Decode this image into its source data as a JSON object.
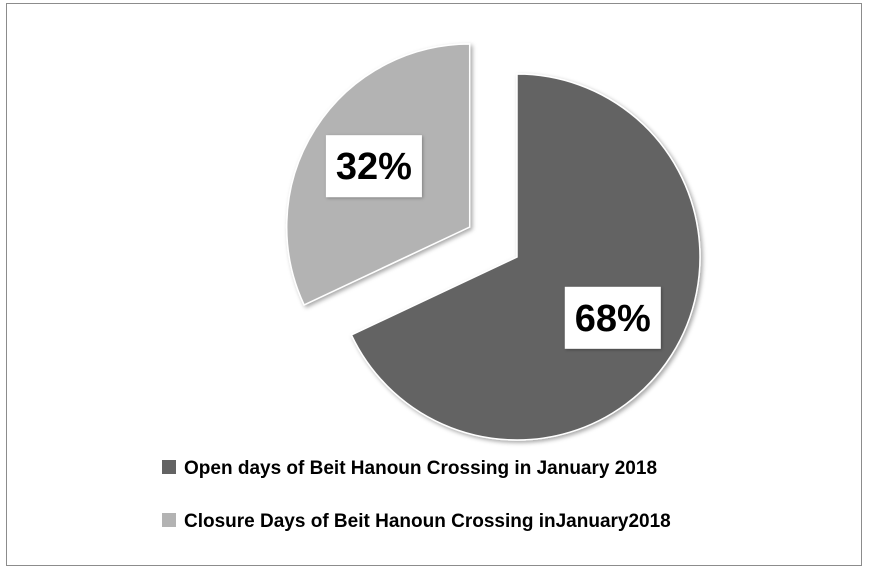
{
  "chart_data": {
    "type": "pie",
    "title": "",
    "slices": [
      {
        "label": "Open days of Beit Hanoun Crossing in January 2018",
        "value": 68,
        "display": "68%",
        "color": "#636363",
        "exploded": false
      },
      {
        "label": "Closure Days of Beit Hanoun Crossing inJanuary2018",
        "value": 32,
        "display": "32%",
        "color": "#b3b3b3",
        "exploded": true
      }
    ],
    "legend_position": "bottom"
  }
}
